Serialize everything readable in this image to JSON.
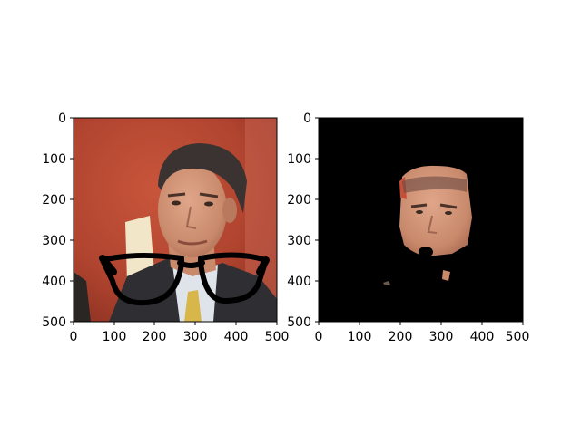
{
  "panels": [
    {
      "content": "Man in suit and yellow tie with drawn-on black eyeglasses over red background",
      "x_ticks": [
        "0",
        "100",
        "200",
        "300",
        "400",
        "500"
      ],
      "y_ticks": [
        "0",
        "100",
        "200",
        "300",
        "400",
        "500"
      ]
    },
    {
      "content": "Segmented face region on black background",
      "x_ticks": [
        "0",
        "100",
        "200",
        "300",
        "400",
        "500"
      ],
      "y_ticks": [
        "0",
        "100",
        "200",
        "300",
        "400",
        "500"
      ]
    }
  ]
}
